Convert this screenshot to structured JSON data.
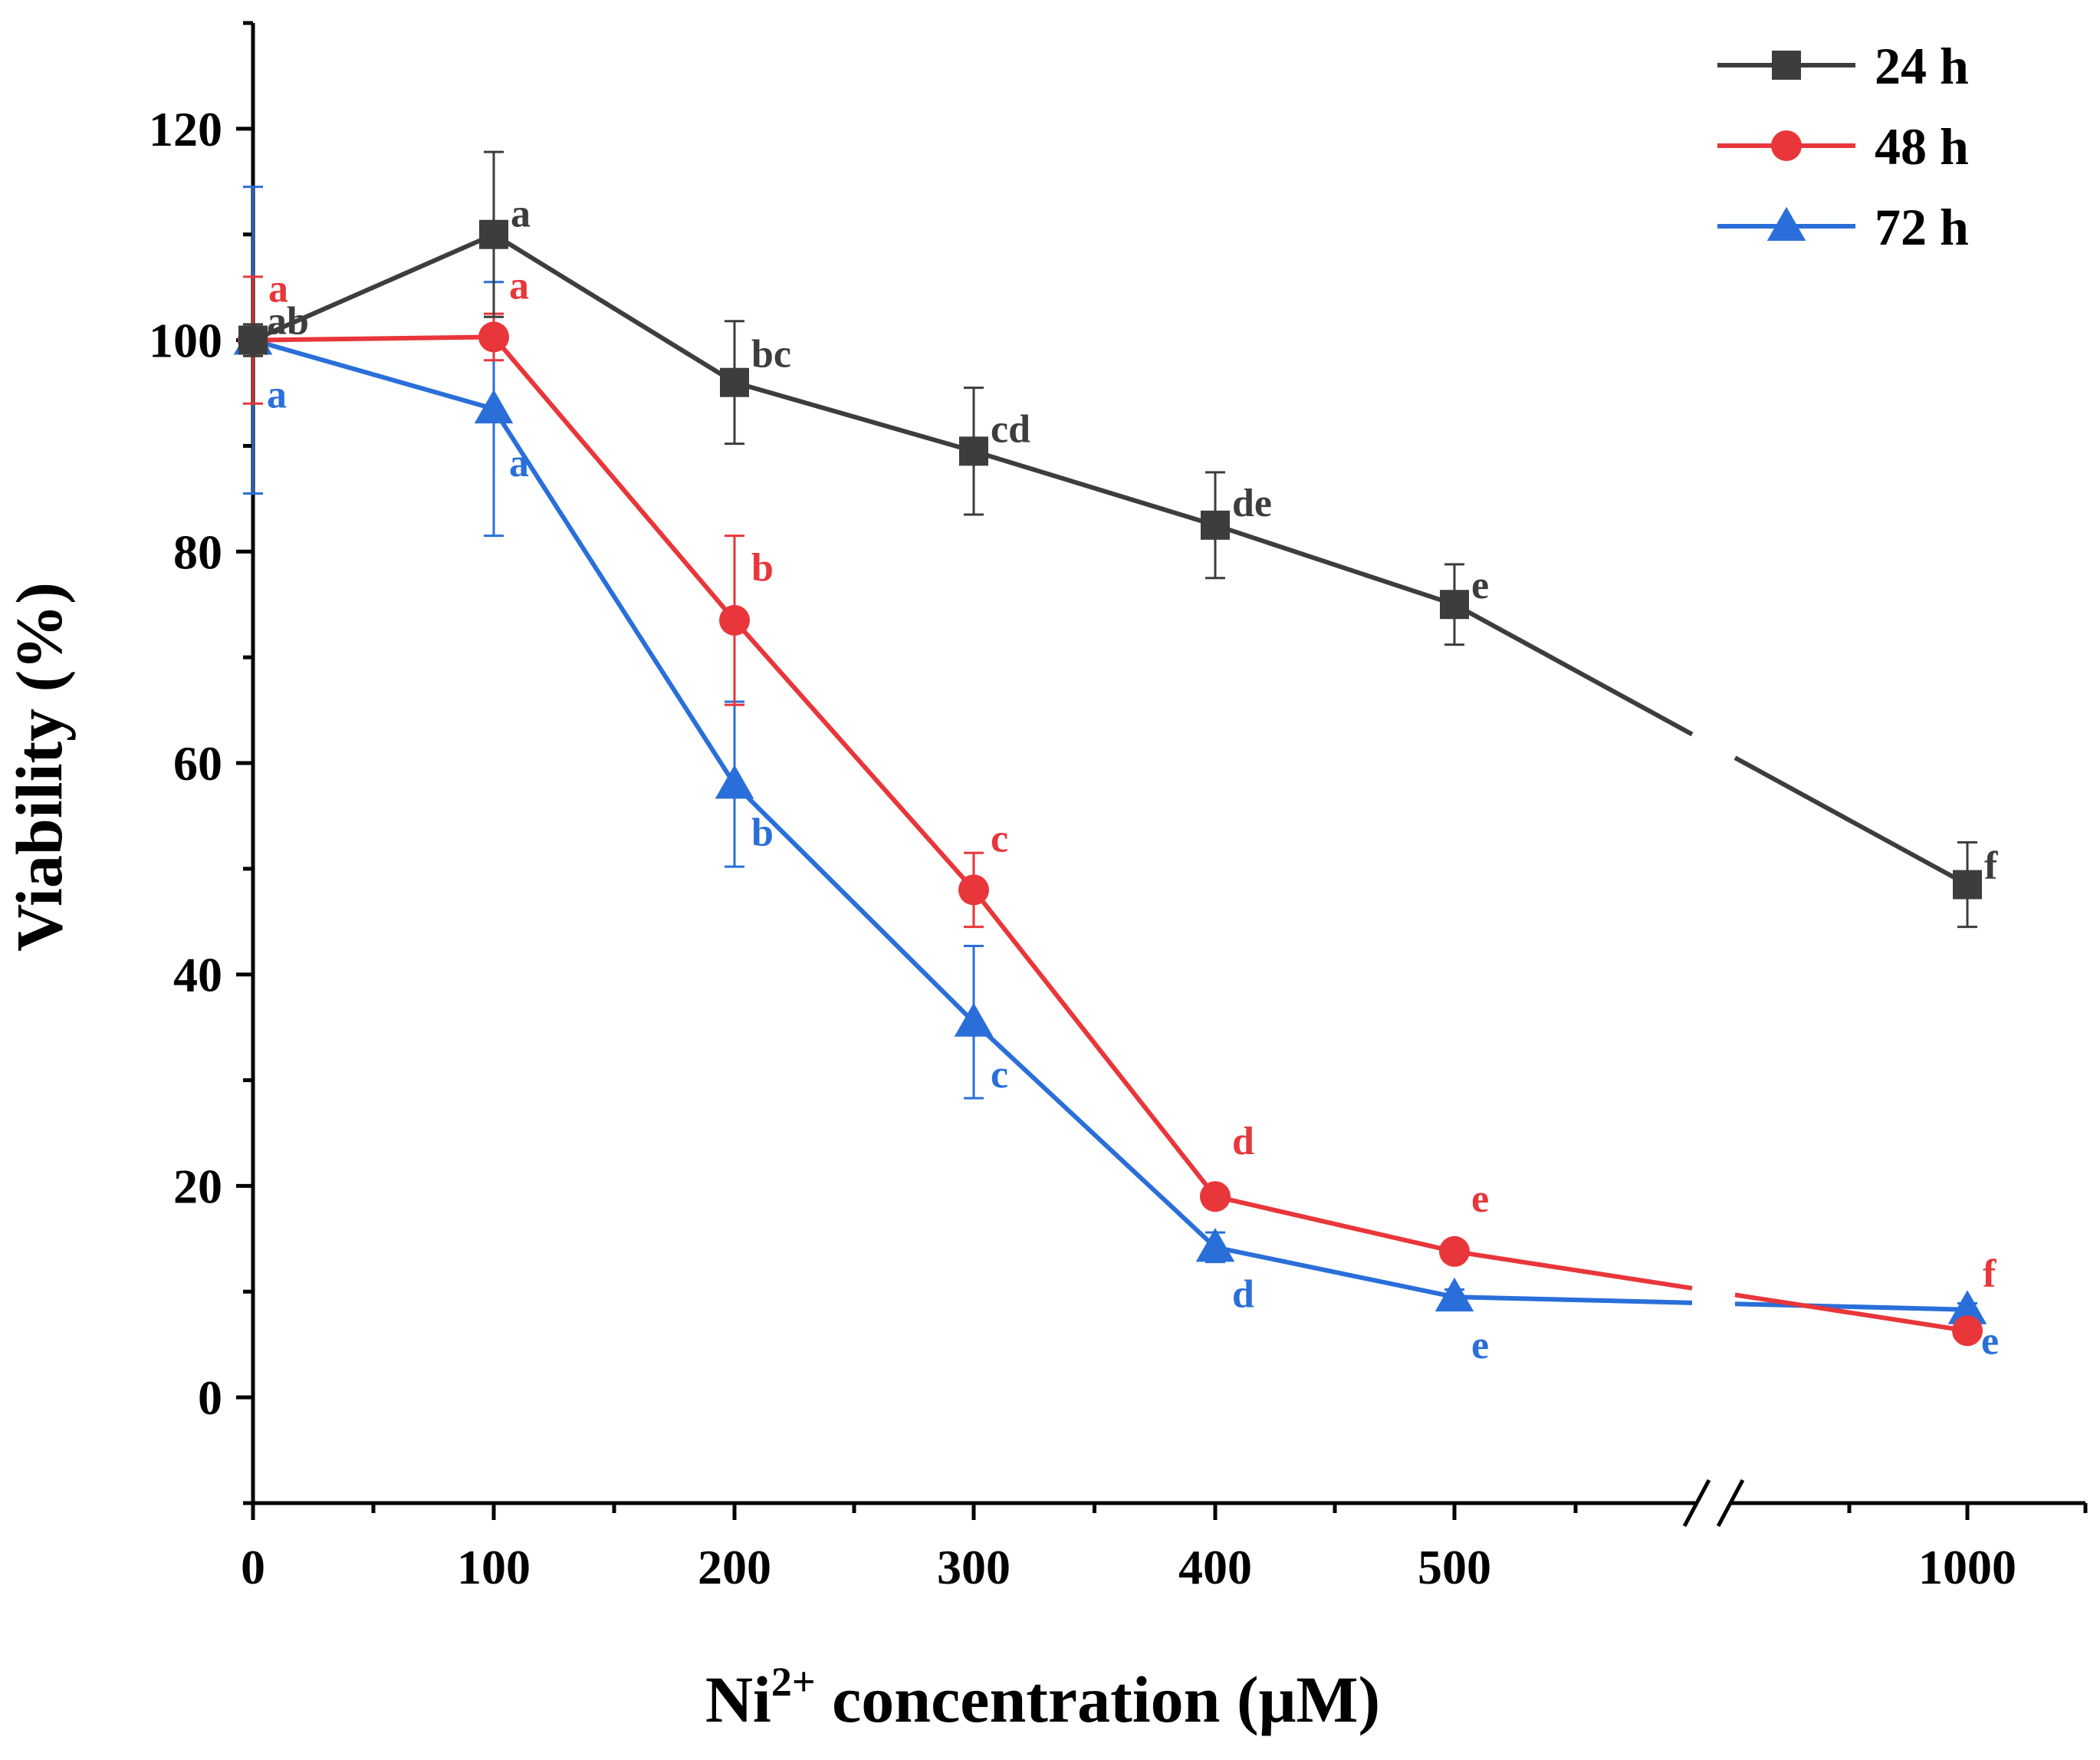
{
  "chart_data": {
    "type": "line",
    "title": "",
    "xlabel_main": "Ni",
    "xlabel_sup": "2+",
    "xlabel_rest": " concentration (μM)",
    "ylabel": "Viability (%)",
    "x": [
      0,
      100,
      200,
      300,
      400,
      500,
      1000
    ],
    "x_tick_labels": [
      "0",
      "100",
      "200",
      "300",
      "400",
      "500",
      "1000"
    ],
    "y_ticks": [
      0,
      20,
      40,
      60,
      80,
      100,
      120
    ],
    "y_tick_labels": [
      "0",
      "20",
      "40",
      "60",
      "80",
      "100",
      "120"
    ],
    "ylim": [
      -10,
      130
    ],
    "x_axis_break": "between 500 and 1000",
    "legend_position": "top-right",
    "grid": false,
    "series": [
      {
        "name": "24 h",
        "color": "#3d3d3d",
        "marker": "square",
        "values": [
          100,
          110,
          96,
          89.5,
          82.5,
          75,
          48.5
        ],
        "errors": [
          1.5,
          7.8,
          5.8,
          6.0,
          5.0,
          3.8,
          4.0
        ],
        "letters": [
          "ab",
          "a",
          "bc",
          "cd",
          "de",
          "e",
          "f"
        ]
      },
      {
        "name": "48 h",
        "color": "#e8363a",
        "marker": "circle",
        "values": [
          100,
          100.3,
          73.5,
          48,
          19,
          13.8,
          6.3
        ],
        "errors": [
          6.0,
          2.2,
          8.0,
          3.5,
          0.8,
          0.8,
          0.6
        ],
        "letters": [
          "a",
          "a",
          "b",
          "c",
          "d",
          "e",
          "f"
        ]
      },
      {
        "name": "72 h",
        "color": "#2a6fd9",
        "marker": "triangle",
        "values": [
          100,
          93.5,
          58,
          35.5,
          14.2,
          9.5,
          8.3
        ],
        "errors": [
          14.5,
          12.0,
          7.8,
          7.2,
          1.4,
          0.7,
          0.6
        ],
        "letters": [
          "a",
          "a",
          "b",
          "c",
          "d",
          "e",
          "e"
        ]
      }
    ]
  }
}
